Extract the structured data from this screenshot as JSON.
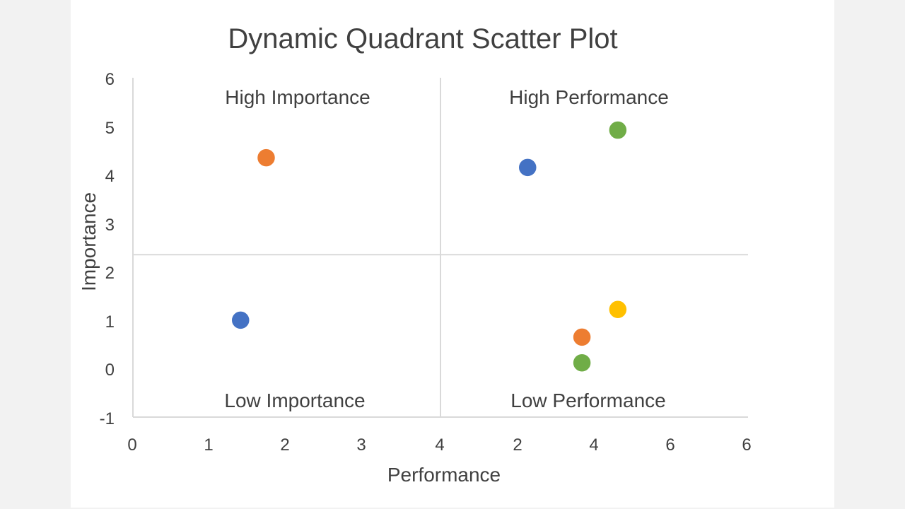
{
  "chart_data": {
    "type": "scatter",
    "title": "Dynamic Quadrant Scatter Plot",
    "xlabel": "Performance",
    "ylabel": "Importance",
    "x_tick_labels": [
      "0",
      "1",
      "2",
      "3",
      "4",
      "2",
      "4",
      "6",
      "6"
    ],
    "y_tick_labels": [
      "-1",
      "0",
      "1",
      "2",
      "3",
      "4",
      "5",
      "6"
    ],
    "ylim": [
      -1,
      6
    ],
    "xlim": [
      0,
      6
    ],
    "quadrant_labels": {
      "top_left": "High Importance",
      "top_right": "High Performance",
      "bottom_left": "Low Importance",
      "bottom_right": "Low Performance"
    },
    "divider": {
      "x": 3,
      "y": 2.35
    },
    "grid": false,
    "points": [
      {
        "x": 1.3,
        "y": 4.35,
        "color": "#ED7D31"
      },
      {
        "x": 1.05,
        "y": 1.0,
        "color": "#4472C4"
      },
      {
        "x": 3.85,
        "y": 4.15,
        "color": "#4472C4"
      },
      {
        "x": 4.73,
        "y": 4.92,
        "color": "#70AD47"
      },
      {
        "x": 4.38,
        "y": 0.65,
        "color": "#ED7D31"
      },
      {
        "x": 4.73,
        "y": 1.22,
        "color": "#FFC000"
      },
      {
        "x": 4.38,
        "y": 0.12,
        "color": "#70AD47"
      }
    ]
  },
  "colors": {
    "axis": "#d9d9d9",
    "text": "#404040"
  }
}
